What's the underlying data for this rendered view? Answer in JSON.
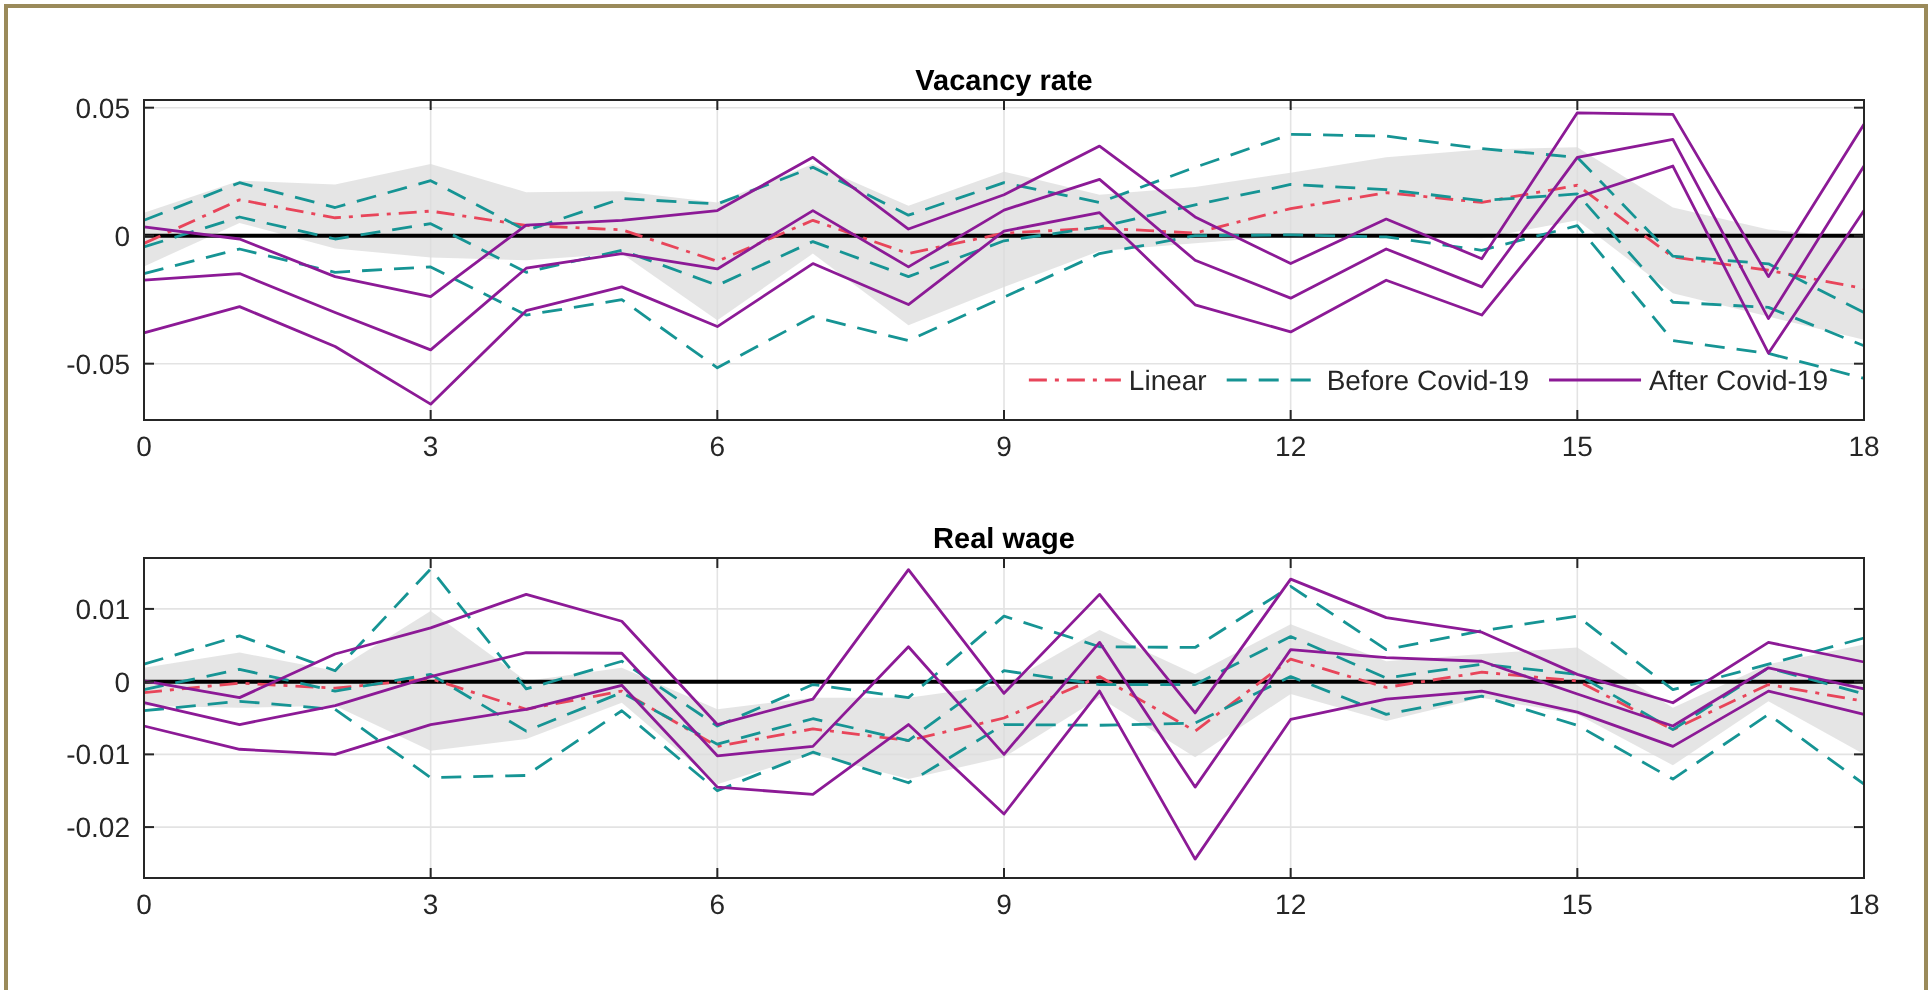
{
  "chart_data": [
    {
      "type": "line",
      "title": "Vacancy rate",
      "x": [
        0,
        1,
        2,
        3,
        4,
        5,
        6,
        7,
        8,
        9,
        10,
        11,
        12,
        13,
        14,
        15,
        16,
        17,
        18
      ],
      "xlim": [
        0,
        18
      ],
      "xticks": [
        0,
        3,
        6,
        9,
        12,
        15,
        18
      ],
      "ylim": [
        -0.072,
        0.053
      ],
      "yticks": [
        -0.05,
        0,
        0.05
      ],
      "grid": true,
      "legend": "bottom right",
      "ref_lines": [
        {
          "axis": "y",
          "value": 0,
          "color": "#000000"
        }
      ],
      "series": [
        {
          "name": "Linear",
          "color": "#e8455a",
          "line_style": "dashdot",
          "values": [
            -0.003,
            0.014,
            0.007,
            0.0096,
            0.004,
            0.0023,
            -0.01,
            0.006,
            -0.007,
            0.001,
            0.003,
            0.001,
            0.0106,
            0.0168,
            0.013,
            0.0197,
            -0.0083,
            -0.0135,
            -0.0207
          ],
          "lower": [
            -0.012,
            0.005,
            -0.005,
            -0.0085,
            -0.0096,
            -0.007,
            -0.033,
            -0.007,
            -0.035,
            -0.02,
            -0.006,
            -0.003,
            0.0,
            0.0,
            -0.001,
            0.006,
            -0.0225,
            -0.0316,
            -0.0407
          ],
          "upper": [
            0.009,
            0.0215,
            0.02,
            0.028,
            0.017,
            0.0174,
            0.013,
            0.028,
            0.0117,
            0.025,
            0.016,
            0.019,
            0.0246,
            0.0306,
            0.0337,
            0.0345,
            0.011,
            0.0024,
            -0.001
          ]
        },
        {
          "name": "Before Covid-19",
          "color": "#169494",
          "line_style": "dashed",
          "values": [
            -0.0044,
            0.0073,
            -0.0013,
            0.0047,
            -0.0143,
            -0.0057,
            -0.0194,
            -0.0023,
            -0.016,
            -0.002,
            0.0034,
            0.012,
            0.02,
            0.018,
            0.0137,
            0.0163,
            -0.026,
            -0.028,
            -0.043
          ]
        },
        {
          "color": "#169494",
          "line_style": "dashed",
          "values": [
            0.006,
            0.0207,
            0.011,
            0.0215,
            0.002,
            0.0145,
            0.0124,
            0.0267,
            0.008,
            0.0207,
            0.013,
            0.0267,
            0.0396,
            0.0389,
            0.034,
            0.0306,
            -0.008,
            -0.011,
            -0.03
          ]
        },
        {
          "color": "#169494",
          "line_style": "dashed",
          "values": [
            -0.0148,
            -0.0052,
            -0.0143,
            -0.0122,
            -0.031,
            -0.025,
            -0.0516,
            -0.0316,
            -0.041,
            -0.024,
            -0.007,
            0.0,
            0.0003,
            -0.0005,
            -0.0057,
            0.0039,
            -0.041,
            -0.046,
            -0.0557
          ]
        },
        {
          "name": "After Covid-19",
          "color": "#8c1a96",
          "line_style": "solid",
          "values": [
            -0.0174,
            -0.0148,
            -0.03,
            -0.0446,
            -0.0127,
            -0.007,
            -0.013,
            0.0098,
            -0.0122,
            0.01,
            0.022,
            -0.0096,
            -0.0244,
            -0.0052,
            -0.02,
            0.0306,
            0.0376,
            -0.0324,
            0.0272
          ]
        },
        {
          "color": "#8c1a96",
          "line_style": "solid",
          "values": [
            0.0034,
            -0.0013,
            -0.016,
            -0.0238,
            0.0041,
            0.006,
            0.0098,
            0.0306,
            0.0026,
            0.016,
            0.035,
            0.0073,
            -0.0109,
            0.0065,
            -0.009,
            0.048,
            0.0474,
            -0.016,
            0.0435
          ]
        },
        {
          "color": "#8c1a96",
          "line_style": "solid",
          "values": [
            -0.038,
            -0.0277,
            -0.0433,
            -0.0658,
            -0.0293,
            -0.02,
            -0.0355,
            -0.0109,
            -0.0269,
            0.0018,
            0.009,
            -0.027,
            -0.0376,
            -0.0174,
            -0.031,
            0.015,
            0.0272,
            -0.0459,
            0.0098
          ]
        }
      ]
    },
    {
      "type": "line",
      "title": "Real wage",
      "x": [
        0,
        1,
        2,
        3,
        4,
        5,
        6,
        7,
        8,
        9,
        10,
        11,
        12,
        13,
        14,
        15,
        16,
        17,
        18
      ],
      "xlim": [
        0,
        18
      ],
      "xticks": [
        0,
        3,
        6,
        9,
        12,
        15,
        18
      ],
      "ylim": [
        -0.027,
        0.017
      ],
      "yticks": [
        -0.02,
        -0.01,
        0,
        0.01
      ],
      "grid": true,
      "ref_lines": [
        {
          "axis": "y",
          "value": 0,
          "color": "#000000"
        }
      ],
      "series": [
        {
          "color": "#e8455a",
          "line_style": "dashdot",
          "values": [
            -0.0015,
            -0.0002,
            -0.0009,
            0.0004,
            -0.0038,
            -0.0013,
            -0.0089,
            -0.0065,
            -0.0081,
            -0.005,
            0.0007,
            -0.0068,
            0.0031,
            -0.0008,
            0.0013,
            0.0001,
            -0.0066,
            -0.0004,
            -0.0027
          ],
          "lower": [
            -0.0033,
            -0.0036,
            -0.0033,
            -0.0095,
            -0.0079,
            -0.0029,
            -0.0141,
            -0.01,
            -0.0134,
            -0.0104,
            -0.0022,
            -0.0104,
            -0.0017,
            -0.0054,
            -0.0022,
            -0.0045,
            -0.0115,
            -0.0027,
            -0.01
          ],
          "upper": [
            0.0019,
            0.004,
            0.0015,
            0.0097,
            0.0001,
            0.0019,
            -0.0038,
            -0.0022,
            -0.0022,
            -0.0004,
            0.0071,
            0.001,
            0.0079,
            0.0028,
            0.0038,
            0.0047,
            -0.0036,
            0.0024,
            0.0051
          ]
        },
        {
          "color": "#169494",
          "line_style": "dashed",
          "values": [
            -0.0011,
            0.0017,
            -0.0013,
            0.001,
            -0.0068,
            -0.0015,
            -0.0086,
            -0.0051,
            -0.0081,
            0.0015,
            -0.0004,
            -0.0004,
            0.0062,
            0.0005,
            0.0024,
            0.001,
            -0.0066,
            0.0019,
            -0.0017
          ]
        },
        {
          "color": "#169494",
          "line_style": "dashed",
          "values": [
            0.0024,
            0.0063,
            0.0015,
            0.0155,
            -0.001,
            0.0028,
            -0.0061,
            -0.0004,
            -0.0022,
            0.009,
            0.0048,
            0.0047,
            0.0131,
            0.0044,
            0.007,
            0.009,
            -0.0011,
            0.0024,
            0.006
          ]
        },
        {
          "color": "#169494",
          "line_style": "dashed",
          "values": [
            -0.004,
            -0.0027,
            -0.0038,
            -0.0132,
            -0.0129,
            -0.004,
            -0.015,
            -0.0097,
            -0.0139,
            -0.0059,
            -0.006,
            -0.0057,
            0.0007,
            -0.0045,
            -0.002,
            -0.006,
            -0.0134,
            -0.0045,
            -0.0141
          ]
        },
        {
          "color": "#8c1a96",
          "line_style": "solid",
          "values": [
            -0.0029,
            -0.0059,
            -0.0033,
            0.0007,
            0.004,
            0.0039,
            -0.0102,
            -0.0089,
            0.0048,
            -0.01,
            0.0054,
            -0.0145,
            0.0044,
            0.0033,
            0.0028,
            -0.0017,
            -0.0061,
            0.0019,
            -0.001
          ]
        },
        {
          "color": "#8c1a96",
          "line_style": "solid",
          "values": [
            0.0001,
            -0.0022,
            0.0038,
            0.0074,
            0.012,
            0.0083,
            -0.0059,
            -0.0024,
            0.0154,
            -0.0016,
            0.012,
            -0.0043,
            0.0141,
            0.0088,
            0.0068,
            0.001,
            -0.0029,
            0.0054,
            0.0027
          ]
        },
        {
          "color": "#8c1a96",
          "line_style": "solid",
          "values": [
            -0.0061,
            -0.0093,
            -0.01,
            -0.0059,
            -0.0038,
            -0.0005,
            -0.0145,
            -0.0155,
            -0.0059,
            -0.0182,
            -0.0013,
            -0.0244,
            -0.0052,
            -0.0024,
            -0.0013,
            -0.0042,
            -0.0089,
            -0.0013,
            -0.0045
          ]
        }
      ]
    }
  ]
}
